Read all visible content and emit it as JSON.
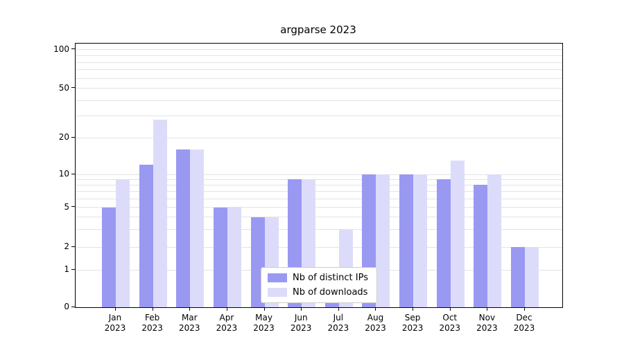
{
  "title": "argparse 2023",
  "chart_data": {
    "type": "bar",
    "title": "argparse 2023",
    "categories": [
      "Jan",
      "Feb",
      "Mar",
      "Apr",
      "May",
      "Jun",
      "Jul",
      "Aug",
      "Sep",
      "Oct",
      "Nov",
      "Dec"
    ],
    "year_label": "2023",
    "series": [
      {
        "name": "Nb of distinct IPs",
        "color": "#9999f2",
        "values": [
          5,
          12,
          16,
          5,
          4,
          9,
          1,
          10,
          10,
          9,
          8,
          2
        ]
      },
      {
        "name": "Nb of downloads",
        "color": "#dcdcfa",
        "values": [
          9,
          28,
          16,
          5,
          4,
          9,
          3,
          10,
          10,
          13,
          10,
          2
        ]
      }
    ],
    "yticks": [
      0,
      1,
      2,
      5,
      10,
      20,
      50,
      100
    ],
    "gridline_values": [
      1,
      2,
      3,
      4,
      5,
      6,
      7,
      8,
      9,
      10,
      20,
      30,
      40,
      50,
      60,
      70,
      80,
      90,
      100
    ],
    "scale": "symlog",
    "ylim": [
      0,
      120
    ],
    "xlabel": "",
    "ylabel": "",
    "grid": true,
    "legend_position": "lower center"
  },
  "colors": {
    "distinct_ips": "#9999f2",
    "downloads": "#dcdcfa",
    "grid": "#e3e3e3",
    "axis": "#000000",
    "background": "#ffffff"
  }
}
